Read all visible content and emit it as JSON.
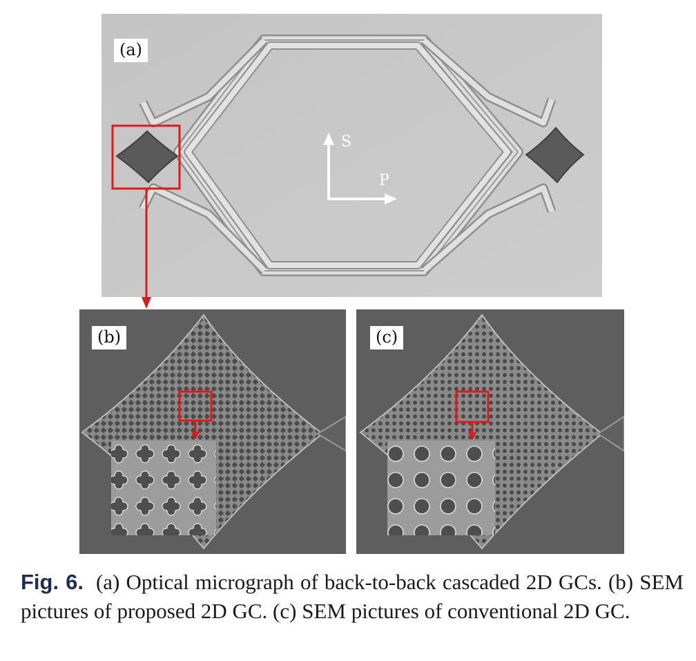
{
  "panels": {
    "a": {
      "label": "(a)",
      "axis_vertical": "S",
      "axis_horizontal": "P"
    },
    "b": {
      "label": "(b)"
    },
    "c": {
      "label": "(c)"
    }
  },
  "colors": {
    "highlight": "#e0181c",
    "micrograph_bg": "#c8c8c8",
    "sem_bg": "#5c5c5c"
  },
  "caption": {
    "figure_number": "Fig. 6.",
    "text": "(a) Optical micrograph of back-to-back cascaded 2D GCs. (b) SEM pictures of proposed 2D GC. (c) SEM pictures of conventional 2D GC."
  }
}
